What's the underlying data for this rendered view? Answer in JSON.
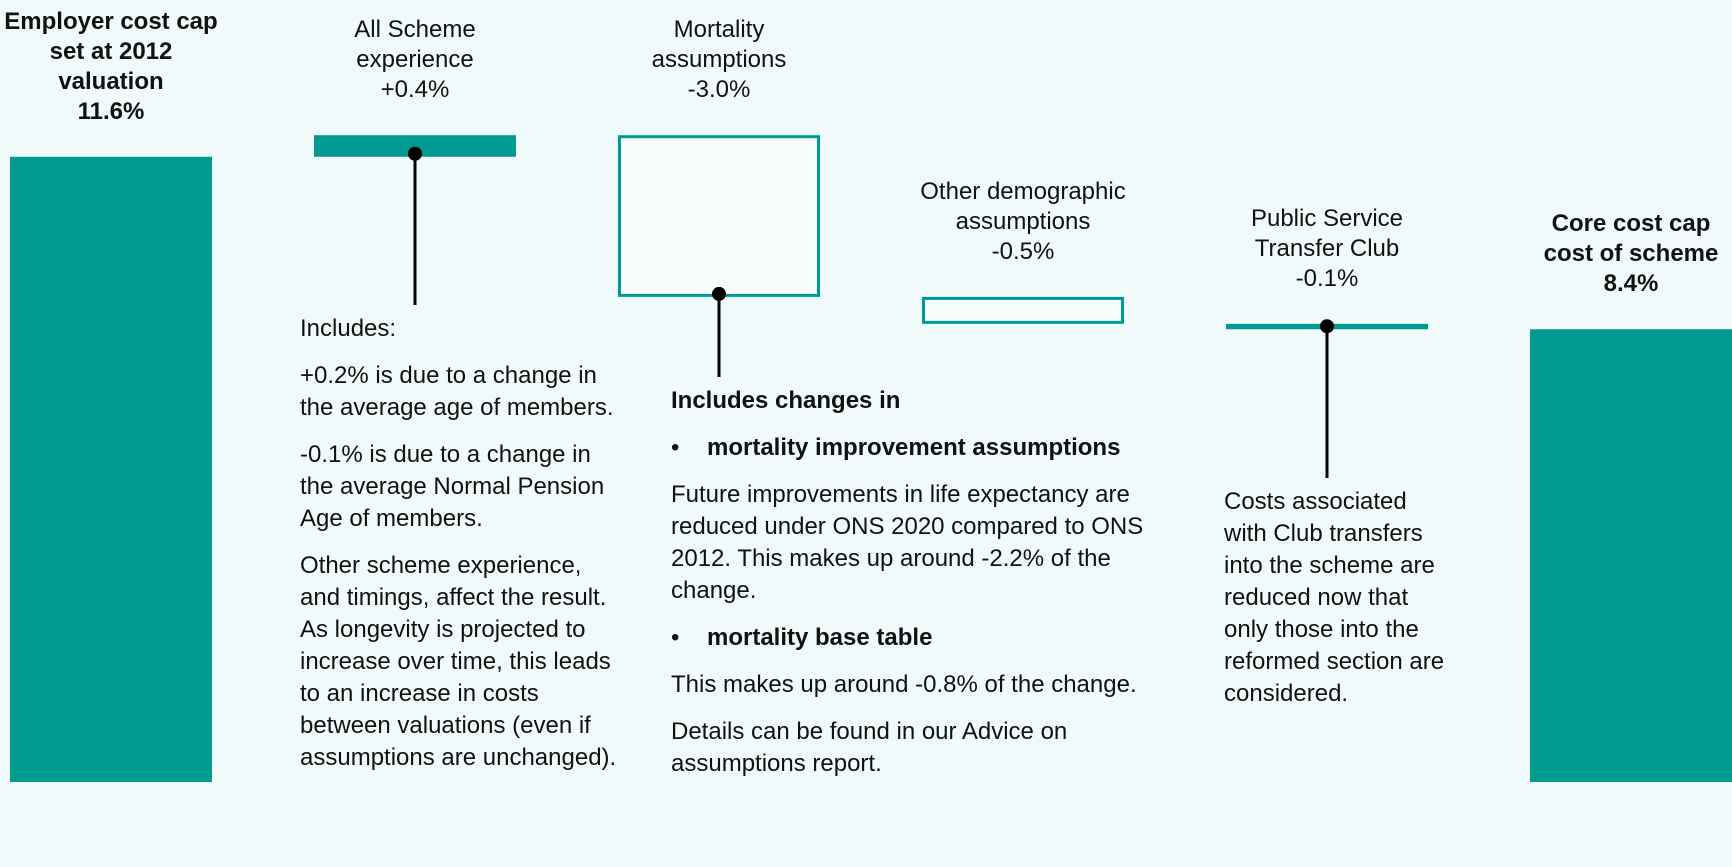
{
  "chart_data": {
    "type": "waterfall",
    "categories": [
      "Employer cost cap set at 2012 valuation",
      "All Scheme experience",
      "Mortality assumptions",
      "Other demographic assumptions",
      "Public Service Transfer Club",
      "Core cost cap cost of scheme"
    ],
    "values": [
      11.6,
      0.4,
      -3.0,
      -0.5,
      -0.1,
      8.4
    ],
    "value_labels": [
      "11.6%",
      "+0.4%",
      "-3.0%",
      "-0.5%",
      "-0.1%",
      "8.4%"
    ],
    "measure": [
      "absolute",
      "relative",
      "relative",
      "relative",
      "relative",
      "absolute"
    ],
    "color": "#009a91",
    "annotations": [
      null,
      {
        "items": [
          {
            "kind": "text",
            "text": "Includes:"
          },
          {
            "kind": "text",
            "text": "+0.2% is due to a change in the average age of members."
          },
          {
            "kind": "text",
            "text": "-0.1% is due to a change in the average Normal Pension Age of members."
          },
          {
            "kind": "text",
            "text": "Other scheme experience, and timings, affect the result. As longevity is projected to increase over time, this leads to an increase in costs between valuations (even if assumptions are unchanged)."
          }
        ]
      },
      {
        "items": [
          {
            "kind": "heading",
            "text": "Includes changes in"
          },
          {
            "kind": "bullet",
            "text": "mortality improvement assumptions"
          },
          {
            "kind": "text",
            "text": "Future improvements in life expectancy are reduced under ONS 2020 compared to ONS 2012. This makes up around -2.2% of the change."
          },
          {
            "kind": "bullet",
            "text": "mortality base table"
          },
          {
            "kind": "text",
            "text": "This makes up around -0.8% of the change."
          },
          {
            "kind": "text",
            "text": "Details can be found in our Advice on assumptions report."
          }
        ]
      },
      null,
      {
        "items": [
          {
            "kind": "text",
            "text": "Costs associated with Club transfers into the scheme are reduced now that only those into the reformed section are considered."
          }
        ]
      },
      null
    ]
  }
}
